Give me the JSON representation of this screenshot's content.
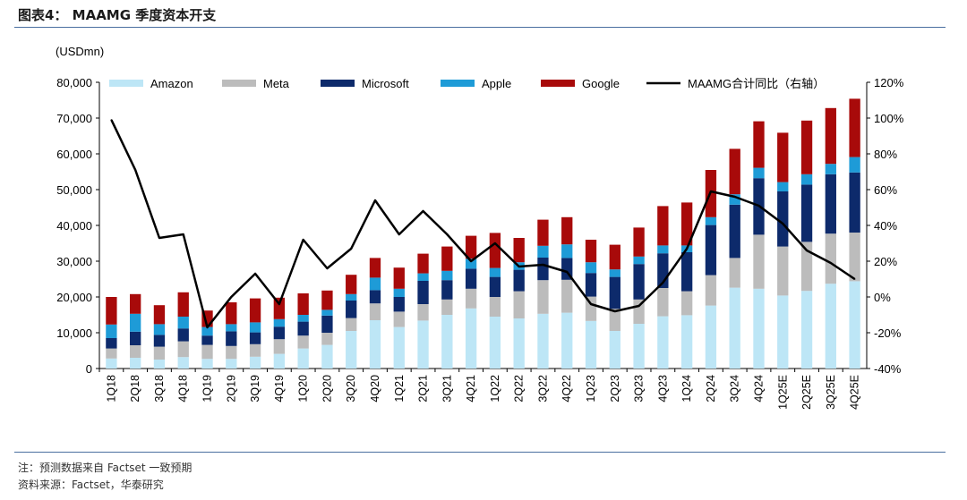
{
  "figure_title": "图表4： MAAMG 季度资本开支",
  "footnote": "注：预测数据来自 Factset 一致预期",
  "source": "资料来源：Factset，华泰研究",
  "chart_data": {
    "type": "bar",
    "stacked": true,
    "unit_label": "(USDmn)",
    "categories": [
      "1Q18",
      "2Q18",
      "3Q18",
      "4Q18",
      "1Q19",
      "2Q19",
      "3Q19",
      "4Q19",
      "1Q20",
      "2Q20",
      "3Q20",
      "4Q20",
      "1Q21",
      "2Q21",
      "3Q21",
      "4Q21",
      "1Q22",
      "2Q22",
      "3Q22",
      "4Q22",
      "1Q23",
      "2Q23",
      "3Q23",
      "4Q23",
      "1Q24",
      "2Q24",
      "3Q24",
      "4Q24",
      "1Q25E",
      "2Q25E",
      "3Q25E",
      "4Q25E"
    ],
    "series": [
      {
        "name": "Amazon",
        "color": "#bde6f6",
        "values": [
          2800,
          3000,
          2500,
          3200,
          2700,
          2700,
          3300,
          4100,
          5600,
          6600,
          10500,
          13500,
          11600,
          13400,
          15000,
          16800,
          14500,
          14000,
          15300,
          15600,
          13300,
          10500,
          12500,
          14600,
          14900,
          17600,
          22600,
          22300,
          20400,
          21700,
          23700,
          24400
        ]
      },
      {
        "name": "Meta",
        "color": "#bcbcbc",
        "values": [
          2800,
          3500,
          3600,
          4400,
          3900,
          3600,
          3500,
          4100,
          3600,
          3400,
          3600,
          4700,
          4300,
          4600,
          4300,
          5500,
          5500,
          7600,
          9400,
          9200,
          6800,
          6200,
          6800,
          7900,
          6700,
          8500,
          8300,
          15100,
          13700,
          13700,
          14000,
          13600
        ]
      },
      {
        "name": "Microsoft",
        "color": "#0d2a6b",
        "values": [
          2900,
          3800,
          3300,
          3600,
          2600,
          4100,
          3300,
          3500,
          3900,
          4800,
          4900,
          3700,
          4100,
          6500,
          5400,
          5600,
          5600,
          6000,
          6300,
          6100,
          6600,
          8900,
          9900,
          9700,
          10900,
          14000,
          14900,
          15800,
          15400,
          16000,
          16600,
          16800
        ]
      },
      {
        "name": "Apple",
        "color": "#1e9bd7",
        "values": [
          3800,
          5000,
          3000,
          3300,
          2400,
          2000,
          2800,
          2100,
          1900,
          1600,
          1800,
          3500,
          2300,
          2100,
          2600,
          2800,
          2500,
          2100,
          3300,
          3800,
          3000,
          2100,
          2100,
          2200,
          1900,
          2200,
          2900,
          2900,
          2600,
          2900,
          2900,
          4300
        ]
      },
      {
        "name": "Google",
        "color": "#a80a0a",
        "values": [
          7700,
          5500,
          5300,
          6800,
          4600,
          6100,
          6700,
          6000,
          6000,
          5400,
          5400,
          5500,
          5900,
          5500,
          6800,
          6400,
          9800,
          6800,
          7300,
          7600,
          6300,
          6900,
          8100,
          11000,
          12000,
          13200,
          12700,
          13000,
          13800,
          15000,
          15600,
          16300
        ]
      }
    ],
    "line": {
      "name": "MAAMG合计同比（右轴）",
      "color": "#000000",
      "values": [
        99,
        71,
        33,
        35,
        -17,
        0,
        13,
        -4,
        32,
        16,
        27,
        54,
        35,
        48,
        35,
        20,
        30,
        17,
        18,
        14,
        -4,
        -8,
        -5,
        8,
        27,
        59,
        56,
        51,
        41,
        26,
        19,
        10
      ]
    },
    "y_left": {
      "min": 0,
      "max": 80000,
      "step": 10000,
      "tick_labels": [
        "0",
        "10,000",
        "20,000",
        "30,000",
        "40,000",
        "50,000",
        "60,000",
        "70,000",
        "80,000"
      ]
    },
    "y_right": {
      "min": -40,
      "max": 120,
      "step": 20,
      "tick_labels": [
        "-40%",
        "-20%",
        "0%",
        "20%",
        "40%",
        "60%",
        "80%",
        "100%",
        "120%"
      ]
    },
    "grid": false,
    "legend_position": "top"
  }
}
